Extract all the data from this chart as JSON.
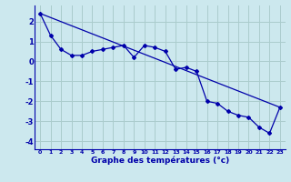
{
  "xlabel": "Graphe des températures (°c)",
  "background_color": "#cce8ee",
  "grid_color": "#aacccc",
  "line_color": "#0000aa",
  "xlim": [
    -0.5,
    23.5
  ],
  "ylim": [
    -4.4,
    2.8
  ],
  "yticks": [
    -4,
    -3,
    -2,
    -1,
    0,
    1,
    2
  ],
  "xticks": [
    0,
    1,
    2,
    3,
    4,
    5,
    6,
    7,
    8,
    9,
    10,
    11,
    12,
    13,
    14,
    15,
    16,
    17,
    18,
    19,
    20,
    21,
    22,
    23
  ],
  "series1_x": [
    0,
    1,
    2,
    3,
    4,
    5,
    6,
    7,
    8,
    9,
    10,
    11,
    12,
    13,
    14,
    15,
    16,
    17,
    18,
    19,
    20,
    21,
    22,
    23
  ],
  "series1_y": [
    2.4,
    1.3,
    0.6,
    0.3,
    0.3,
    0.5,
    0.6,
    0.7,
    0.8,
    0.2,
    0.8,
    0.7,
    0.5,
    -0.4,
    -0.3,
    -0.5,
    -2.0,
    -2.1,
    -2.5,
    -2.7,
    -2.8,
    -3.3,
    -3.6,
    -2.3
  ],
  "series2_x": [
    0,
    23
  ],
  "series2_y": [
    2.4,
    -2.3
  ]
}
